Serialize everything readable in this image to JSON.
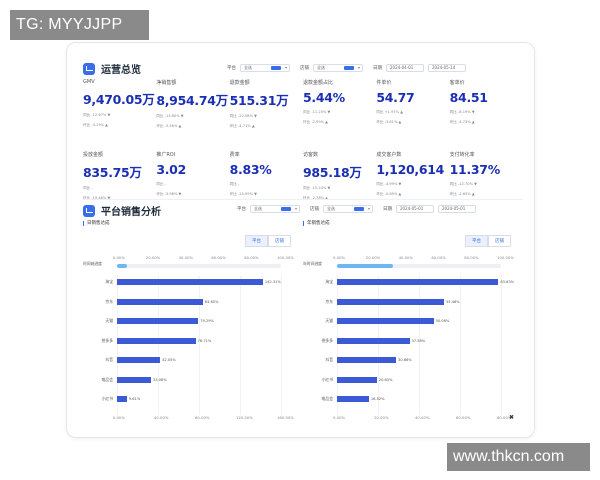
{
  "watermark_top": "TG: MYYJJPP",
  "watermark_bottom": "www.thkcn.com",
  "overview": {
    "title": "运营总览",
    "filter_platform_label": "平台",
    "filter_platform_value": "全选",
    "filter_shop_label": "店铺",
    "filter_shop_value": "全选",
    "filter_date_label": "日期",
    "date_start": "2024-04-01",
    "date_end": "2024-05-14"
  },
  "kpis": [
    {
      "label": "GMV",
      "value": "9,470.05万",
      "sub1": "同比 -12.67% ▼",
      "sub2": "环比 -4.19% ▲"
    },
    {
      "label": "净销售额",
      "value": "8,954.74万",
      "sub1": "同比 -13.60% ▼",
      "sub2": "环比 -5.56% ▲"
    },
    {
      "label": "退款金额",
      "value": "515.31万",
      "sub1": "同比 -22.58% ▼",
      "sub2": "环比 -4.71% ▲"
    },
    {
      "label": "退款金额占比",
      "value": "5.44%",
      "sub1": "同比 -11.25% ▼",
      "sub2": "环比 -2.99% ▲"
    },
    {
      "label": "件单价",
      "value": "54.77",
      "sub1": "同比 +1.97% ▲",
      "sub2": "环比 -3.81% ▲"
    },
    {
      "label": "客单价",
      "value": "84.51",
      "sub1": "同比 -8.19% ▼",
      "sub2": "环比 -4.73% ▲"
    },
    {
      "label": "投放金额",
      "value": "835.75万",
      "sub1": "同比 -",
      "sub2": "环比 -19.46% ▼"
    },
    {
      "label": "推广ROI",
      "value": "3.02",
      "sub1": "同比 -",
      "sub2": "环比 -3.98% ▼"
    },
    {
      "label": "费率",
      "value": "8.83%",
      "sub1": "同比 -",
      "sub2": "环比 -15.99% ▼"
    },
    {
      "label": "访客数",
      "value": "985.18万",
      "sub1": "同比 -15.24% ▼",
      "sub2": "环比 -2.78% ▲"
    },
    {
      "label": "成交客户数",
      "value": "1,120,614",
      "sub1": "同比 -4.99% ▼",
      "sub2": "环比 -0.69% ▲"
    },
    {
      "label": "支付转化率",
      "value": "11.37%",
      "sub1": "同比 -12.70% ▼",
      "sub2": "环比 -2.65% ▲"
    }
  ],
  "sales": {
    "title": "平台销售分析",
    "filter_platform_label": "平台",
    "filter_platform_value": "全选",
    "filter_shop_label": "店铺",
    "filter_shop_value": "全选",
    "filter_date_label": "日期",
    "date_start": "2024-05-01",
    "date_end": "2024-05-01"
  },
  "left_panel": {
    "title": "日销售达成",
    "toggle": [
      "平台",
      "店铺"
    ],
    "zoom_label": "时间轴进度",
    "axis_ticks": [
      "0.00%",
      "40.00%",
      "80.00%",
      "120.00%",
      "160.00%"
    ],
    "axis_top_ticks": [
      "0.00%",
      "20.00%",
      "40.00%",
      "60.00%",
      "80.00%",
      "100.00%"
    ],
    "rows": [
      {
        "label": "淘宝",
        "value": 142.31
      },
      {
        "label": "京东",
        "value": 83.65
      },
      {
        "label": "天猫",
        "value": 79.29
      },
      {
        "label": "拼多多",
        "value": 76.71
      },
      {
        "label": "抖音",
        "value": 42.05
      },
      {
        "label": "唯品会",
        "value": 33.08
      },
      {
        "label": "小红书",
        "value": 9.61
      }
    ]
  },
  "right_panel": {
    "title": "年销售达成",
    "toggle": [
      "平台",
      "店铺"
    ],
    "zoom_label": "年时间进度",
    "axis_ticks": [
      "0.00%",
      "20.00%",
      "40.00%",
      "60.00%",
      "80.00%"
    ],
    "axis_top_ticks": [
      "0.00%",
      "20.00%",
      "40.00%",
      "60.00%",
      "80.00%",
      "100.00%"
    ],
    "rows": [
      {
        "label": "淘宝",
        "value": 83.63
      },
      {
        "label": "京东",
        "value": 55.46
      },
      {
        "label": "天猫",
        "value": 50.06
      },
      {
        "label": "拼多多",
        "value": 37.58
      },
      {
        "label": "抖音",
        "value": 30.66
      },
      {
        "label": "小红书",
        "value": 20.63
      },
      {
        "label": "唯品会",
        "value": 16.52
      }
    ]
  },
  "colors": {
    "accent": "#3a6ee8",
    "bar": "#3c59d6",
    "kpi_value": "#1b2fb3"
  }
}
